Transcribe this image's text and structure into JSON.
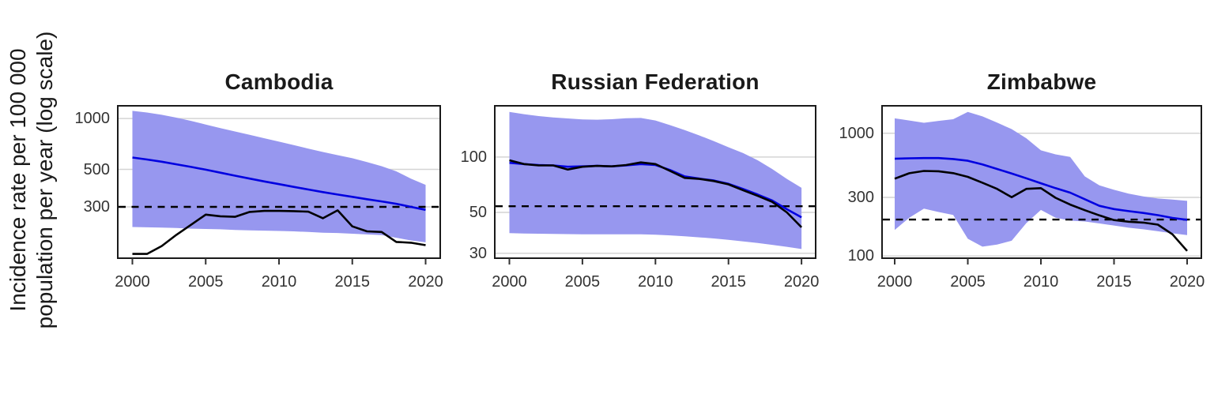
{
  "figure": {
    "y_axis_label_line1": "Incidence rate per 100 000",
    "y_axis_label_line2": "population per year (log scale)"
  },
  "colors": {
    "ribbon_fill": "#9797ef",
    "blue_line": "#0000e0",
    "black_line": "#000000",
    "dashed_line": "#000000",
    "gridline": "#d4d4d4",
    "plot_border": "#1a1a1a",
    "tick_text": "#333333",
    "title_text": "#1a1a1a",
    "background": "#ffffff"
  },
  "chart_data": [
    {
      "type": "line",
      "title": "Cambodia",
      "y_scale": "log",
      "ylim": [
        147,
        1200
      ],
      "x": [
        2000,
        2001,
        2002,
        2003,
        2004,
        2005,
        2006,
        2007,
        2008,
        2009,
        2010,
        2011,
        2012,
        2013,
        2014,
        2015,
        2016,
        2017,
        2018,
        2019,
        2020
      ],
      "x_ticks": [
        2000,
        2005,
        2010,
        2015,
        2020
      ],
      "y_ticks": [
        1000,
        500,
        300
      ],
      "dashed_reference": 300,
      "series": [
        {
          "name": "blue_line",
          "values": [
            588,
            572,
            555,
            536,
            517,
            498,
            478,
            459,
            441,
            424,
            409,
            394,
            380,
            367,
            355,
            344,
            333,
            323,
            313,
            300,
            288
          ]
        },
        {
          "name": "black_line",
          "values": [
            158,
            158,
            176,
            205,
            235,
            270,
            264,
            262,
            280,
            284,
            284,
            283,
            281,
            257,
            286,
            230,
            215,
            213,
            186,
            184,
            178
          ]
        }
      ],
      "ribbon": {
        "name": "ribbon",
        "upper": [
          1110,
          1085,
          1052,
          1012,
          968,
          922,
          878,
          838,
          800,
          764,
          730,
          697,
          664,
          634,
          607,
          582,
          553,
          522,
          487,
          441,
          405
        ],
        "lower": [
          228,
          227,
          226,
          225,
          223,
          222,
          221,
          219,
          218,
          217,
          216,
          215,
          213,
          211,
          210,
          208,
          206,
          204,
          197,
          190,
          185
        ]
      }
    },
    {
      "type": "line",
      "title": "Russian Federation",
      "y_scale": "log",
      "ylim": [
        28,
        192
      ],
      "x": [
        2000,
        2001,
        2002,
        2003,
        2004,
        2005,
        2006,
        2007,
        2008,
        2009,
        2010,
        2011,
        2012,
        2013,
        2014,
        2015,
        2016,
        2017,
        2018,
        2019,
        2020
      ],
      "x_ticks": [
        2000,
        2005,
        2010,
        2015,
        2020
      ],
      "y_ticks": [
        100,
        50,
        30
      ],
      "dashed_reference": 54,
      "series": [
        {
          "name": "blue_line",
          "values": [
            93,
            91.5,
            90.5,
            90,
            88.5,
            89,
            89.5,
            89,
            90,
            91.5,
            90.5,
            85,
            78.5,
            76.3,
            74.5,
            71.5,
            67,
            62.5,
            58,
            52,
            47
          ]
        },
        {
          "name": "black_line",
          "values": [
            96,
            91.5,
            90,
            90,
            85.5,
            88.5,
            89.5,
            89,
            90.5,
            93.5,
            91.5,
            84,
            77,
            76,
            74,
            71,
            66,
            61.5,
            57,
            50,
            41.5
          ]
        }
      ],
      "ribbon": {
        "name": "ribbon",
        "upper": [
          176,
          171,
          167,
          164,
          162,
          160,
          159.5,
          160.5,
          162.5,
          163,
          158,
          149,
          140,
          131,
          122,
          113,
          105,
          96,
          86,
          76,
          68
        ],
        "lower": [
          38.6,
          38.4,
          38.3,
          38.2,
          38.1,
          38,
          38,
          38,
          38,
          38,
          37.8,
          37.5,
          37.1,
          36.6,
          36.1,
          35.5,
          34.8,
          34.1,
          33.3,
          32.5,
          31.6
        ]
      }
    },
    {
      "type": "line",
      "title": "Zimbabwe",
      "y_scale": "log",
      "ylim": [
        94,
        1700
      ],
      "x": [
        2000,
        2001,
        2002,
        2003,
        2004,
        2005,
        2006,
        2007,
        2008,
        2009,
        2010,
        2011,
        2012,
        2013,
        2014,
        2015,
        2016,
        2017,
        2018,
        2019,
        2020
      ],
      "x_ticks": [
        2000,
        2005,
        2010,
        2015,
        2020
      ],
      "y_ticks": [
        1000,
        300,
        100
      ],
      "dashed_reference": 198,
      "series": [
        {
          "name": "blue_line",
          "values": [
            620,
            624,
            627,
            627,
            616,
            596,
            557,
            511,
            470,
            429,
            391,
            357,
            328,
            290,
            256,
            241,
            232,
            224,
            215,
            204,
            197
          ]
        },
        {
          "name": "black_line",
          "values": [
            426,
            472,
            493,
            490,
            473,
            441,
            395,
            352,
            301,
            352,
            357,
            298,
            262,
            236,
            214,
            196,
            190,
            187,
            180,
            150,
            110
          ]
        }
      ],
      "ribbon": {
        "name": "ribbon",
        "upper": [
          1320,
          1270,
          1215,
          1260,
          1300,
          1490,
          1370,
          1220,
          1080,
          910,
          725,
          672,
          640,
          445,
          376,
          346,
          322,
          306,
          294,
          288,
          281
        ],
        "lower": [
          163,
          205,
          243,
          228,
          216,
          138,
          119,
          124,
          133,
          185,
          237,
          205,
          194,
          191,
          184,
          177,
          170,
          165,
          159,
          153,
          148
        ]
      }
    }
  ]
}
